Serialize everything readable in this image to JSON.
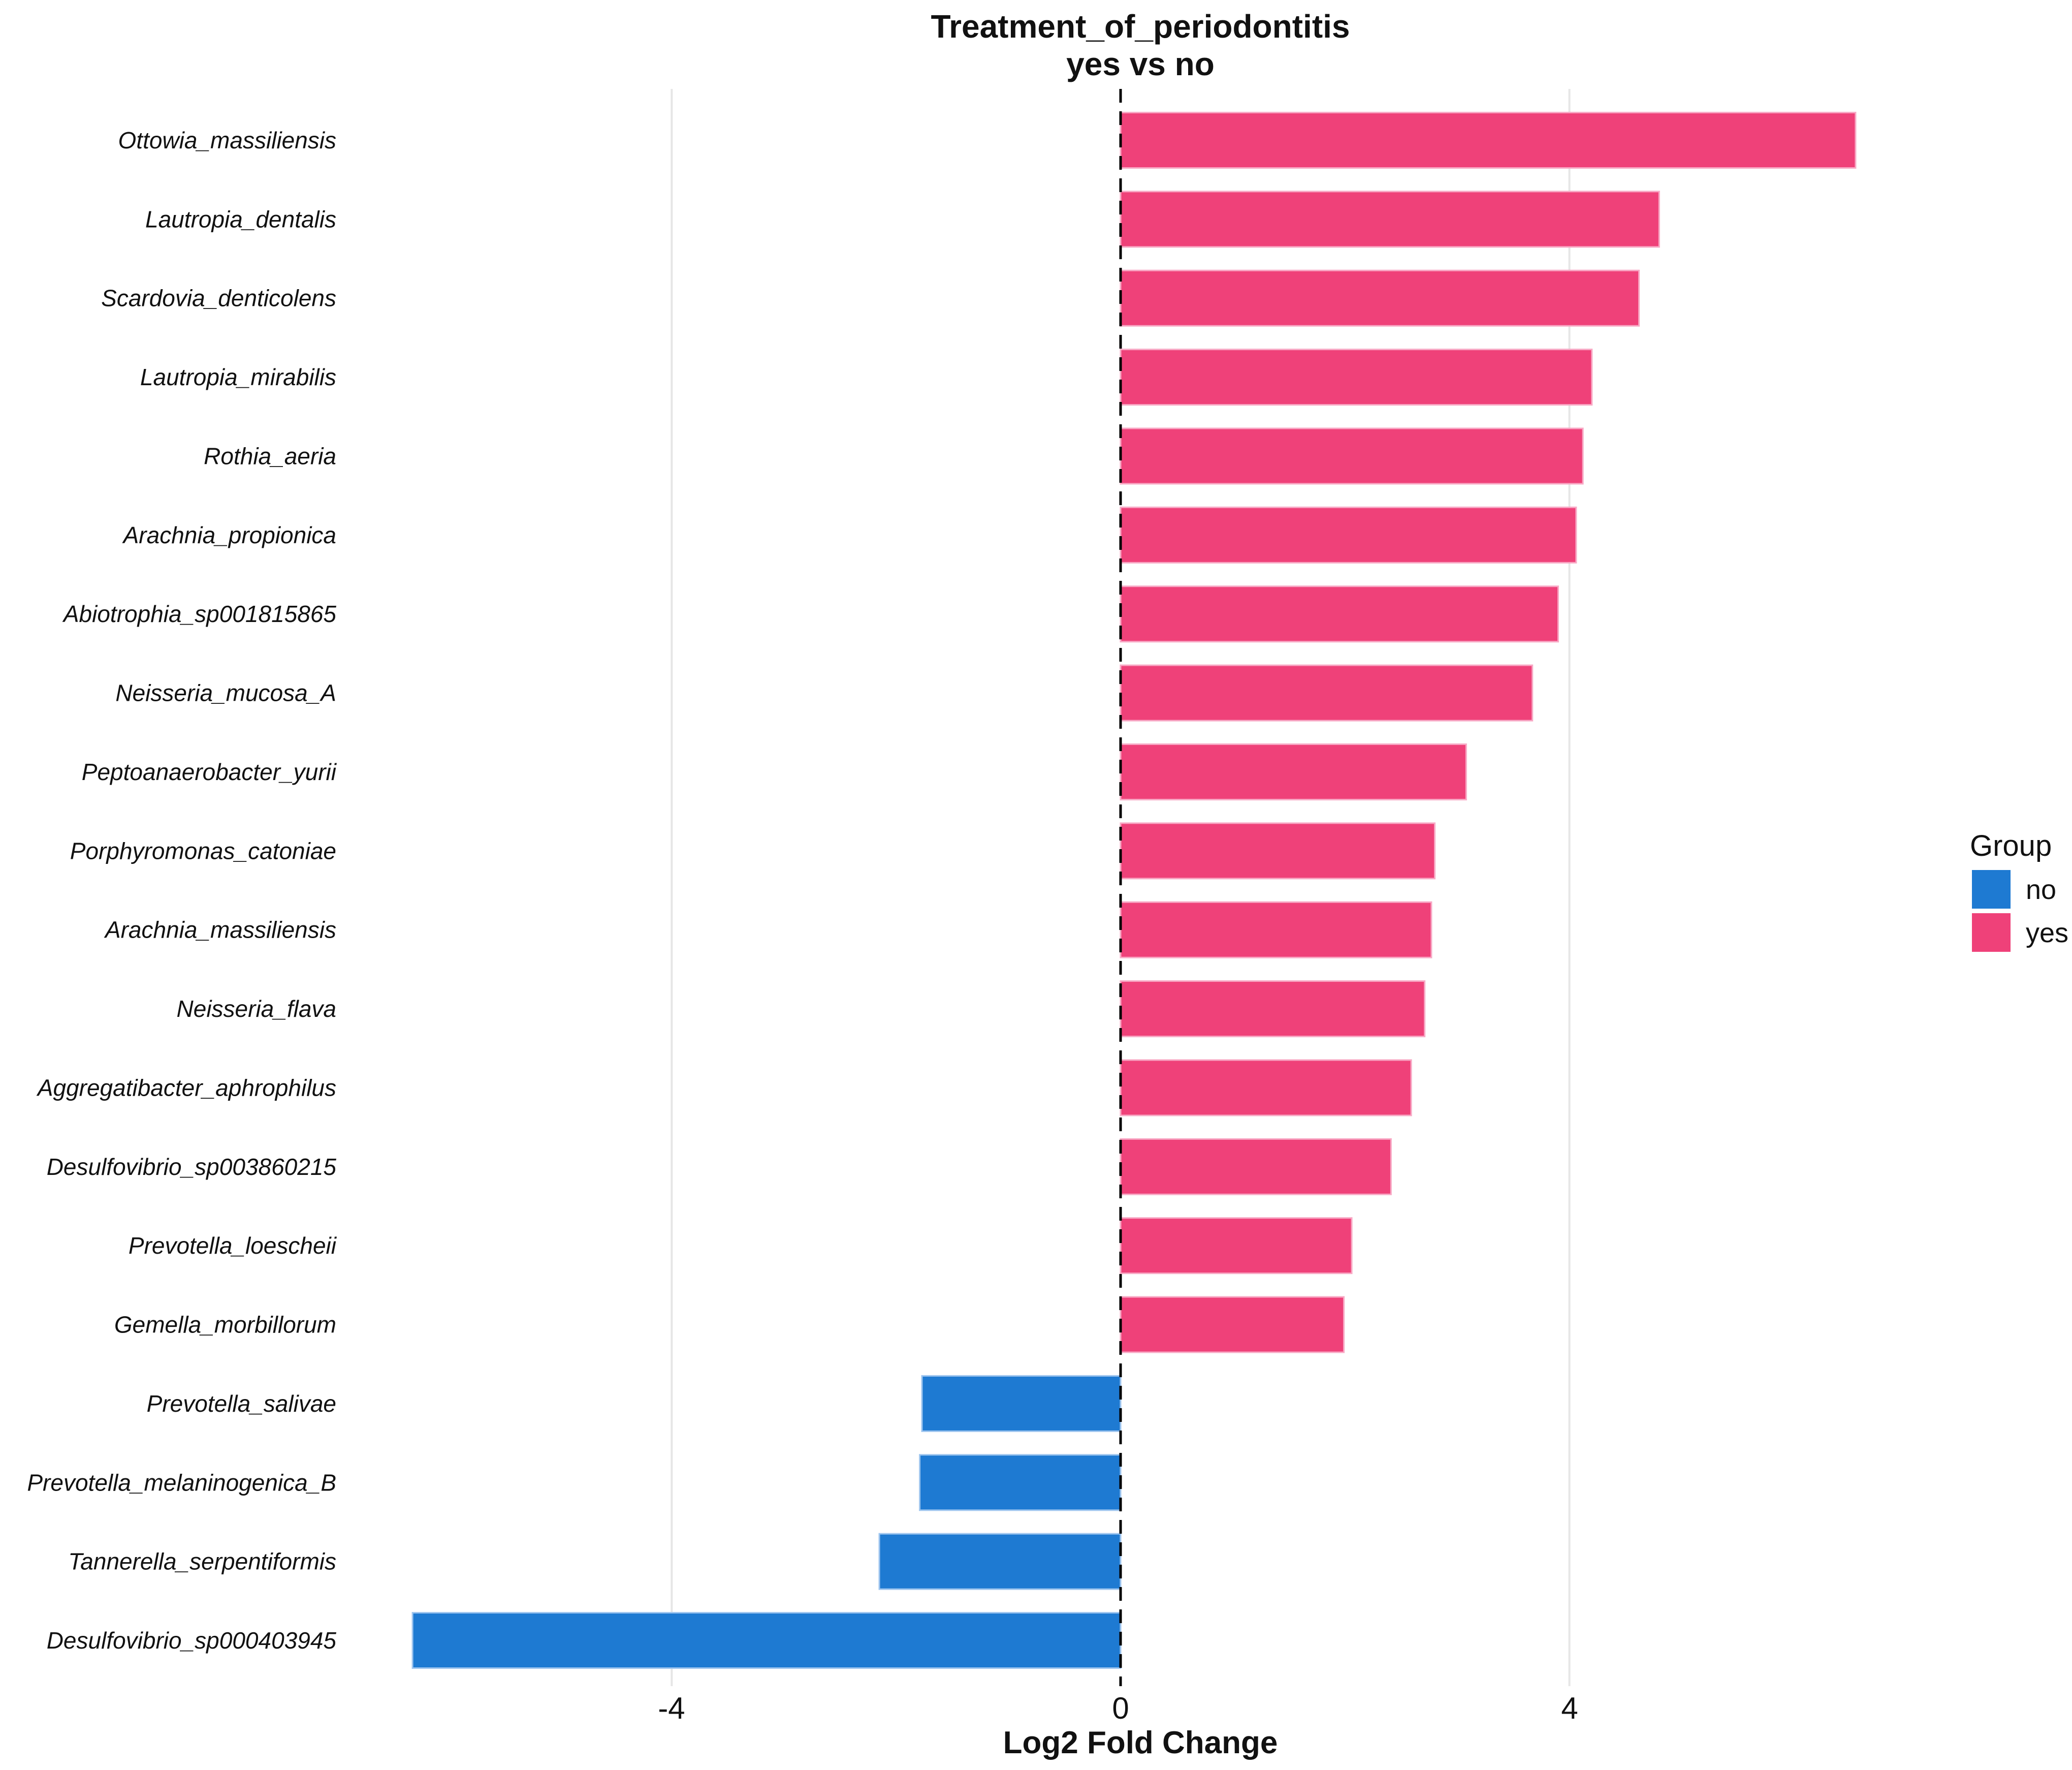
{
  "header": {
    "title_line1": "Treatment_of_periodontitis",
    "title_line2": "yes vs no"
  },
  "axis": {
    "xlabel": "Log2 Fold Change",
    "ticks": [
      {
        "label": "-4",
        "value": -4
      },
      {
        "label": "0",
        "value": 0
      },
      {
        "label": "4",
        "value": 4
      }
    ]
  },
  "legend": {
    "title": "Group",
    "items": [
      {
        "label": "no",
        "color": "#1E7AD2"
      },
      {
        "label": "yes",
        "color": "#EF4179"
      }
    ]
  },
  "colors": {
    "yes_fill": "#EF4179",
    "yes_edge": "#F8A9C5",
    "no_fill": "#1E7AD2",
    "no_edge": "#9EC5EF",
    "gridline": "#E6E6E6",
    "zero_line": "#000000"
  },
  "chart_data": {
    "type": "bar",
    "orientation": "horizontal",
    "title": "Treatment_of_periodontitis yes vs no",
    "xlabel": "Log2 Fold Change",
    "ylabel": "",
    "x_ticks": [
      -4,
      0,
      4
    ],
    "xlim": [
      -6.95,
      7.3
    ],
    "grid": "vertical-only",
    "zero_reference_line": "dashed",
    "legend_position": "right",
    "legend_title": "Group",
    "groups": {
      "yes": "#EF4179",
      "no": "#1E7AD2"
    },
    "items": [
      {
        "species": "Ottowia_massiliensis",
        "group": "yes",
        "value": 6.55
      },
      {
        "species": "Lautropia_dentalis",
        "group": "yes",
        "value": 4.8
      },
      {
        "species": "Scardovia_denticolens",
        "group": "yes",
        "value": 4.62
      },
      {
        "species": "Lautropia_mirabilis",
        "group": "yes",
        "value": 4.2
      },
      {
        "species": "Rothia_aeria",
        "group": "yes",
        "value": 4.12
      },
      {
        "species": "Arachnia_propionica",
        "group": "yes",
        "value": 4.06
      },
      {
        "species": "Abiotrophia_sp001815865",
        "group": "yes",
        "value": 3.9
      },
      {
        "species": "Neisseria_mucosa_A",
        "group": "yes",
        "value": 3.67
      },
      {
        "species": "Peptoanaerobacter_yurii",
        "group": "yes",
        "value": 3.08
      },
      {
        "species": "Porphyromonas_catoniae",
        "group": "yes",
        "value": 2.8
      },
      {
        "species": "Arachnia_massiliensis",
        "group": "yes",
        "value": 2.77
      },
      {
        "species": "Neisseria_flava",
        "group": "yes",
        "value": 2.71
      },
      {
        "species": "Aggregatibacter_aphrophilus",
        "group": "yes",
        "value": 2.59
      },
      {
        "species": "Desulfovibrio_sp003860215",
        "group": "yes",
        "value": 2.41
      },
      {
        "species": "Prevotella_loescheii",
        "group": "yes",
        "value": 2.06
      },
      {
        "species": "Gemella_morbillorum",
        "group": "yes",
        "value": 1.99
      },
      {
        "species": "Prevotella_salivae",
        "group": "no",
        "value": -1.77
      },
      {
        "species": "Prevotella_melaninogenica_B",
        "group": "no",
        "value": -1.79
      },
      {
        "species": "Tannerella_serpentiformis",
        "group": "no",
        "value": -2.15
      },
      {
        "species": "Desulfovibrio_sp000403945",
        "group": "no",
        "value": -6.31
      }
    ]
  }
}
